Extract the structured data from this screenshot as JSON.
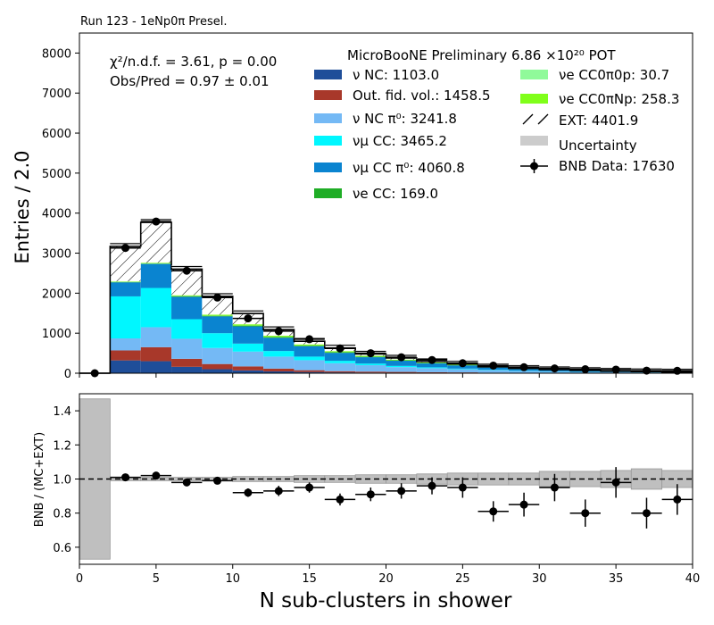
{
  "figure": {
    "run_label": "Run 123 - 1eNp0π Presel.",
    "chi2": "χ²/n.d.f. = 3.61, p = 0.00",
    "obs_pred": "Obs/Pred = 0.97 ± 0.01",
    "legend_title": "MicroBooNE Preliminary 6.86 ×10²⁰ POT"
  },
  "chart_data": [
    {
      "type": "bar",
      "stacked": true,
      "xlabel": "N sub-clusters in shower",
      "ylabel": "Entries / 2.0",
      "xlim": [
        0,
        40
      ],
      "ylim": [
        0,
        8500
      ],
      "x_ticks": [
        0,
        5,
        10,
        15,
        20,
        25,
        30,
        35,
        40
      ],
      "y_ticks": [
        0,
        1000,
        2000,
        3000,
        4000,
        5000,
        6000,
        7000,
        8000
      ],
      "bin_edges": [
        0,
        2,
        4,
        6,
        8,
        10,
        12,
        14,
        16,
        18,
        20,
        22,
        24,
        26,
        28,
        30,
        32,
        34,
        36,
        38,
        40
      ],
      "legend_position": "top-right",
      "series": [
        {
          "name": "ν NC: 1103.0",
          "color": "#1f4e99",
          "values": [
            0,
            320,
            300,
            160,
            100,
            70,
            45,
            30,
            20,
            15,
            12,
            10,
            8,
            5,
            3,
            2,
            1,
            1,
            0,
            0
          ]
        },
        {
          "name": "Out. fid. vol.: 1458.5",
          "color": "#a8382a",
          "values": [
            0,
            250,
            350,
            200,
            130,
            100,
            70,
            45,
            30,
            25,
            20,
            15,
            12,
            8,
            5,
            4,
            3,
            2,
            1,
            1
          ]
        },
        {
          "name": "ν NC π⁰: 3241.8",
          "color": "#74b9f5",
          "values": [
            0,
            300,
            500,
            500,
            400,
            370,
            300,
            250,
            200,
            160,
            120,
            100,
            80,
            60,
            45,
            35,
            25,
            20,
            15,
            10
          ]
        },
        {
          "name": "νμ CC: 3465.2",
          "color": "#00f7ff",
          "values": [
            0,
            1050,
            980,
            490,
            370,
            200,
            140,
            90,
            60,
            40,
            30,
            22,
            15,
            10,
            8,
            6,
            4,
            3,
            2,
            1
          ]
        },
        {
          "name": "νμ CC π⁰: 4060.8",
          "color": "#0a84d0",
          "values": [
            0,
            350,
            600,
            560,
            420,
            430,
            330,
            260,
            200,
            160,
            130,
            100,
            80,
            60,
            45,
            35,
            25,
            20,
            15,
            10
          ]
        },
        {
          "name": "νe CC: 169.0",
          "color": "#1fad26",
          "values": [
            0,
            10,
            10,
            15,
            15,
            20,
            18,
            15,
            15,
            12,
            10,
            8,
            6,
            4,
            3,
            3,
            2,
            2,
            1,
            0
          ]
        },
        {
          "name": "νe CC0π0p: 30.7",
          "color": "#90fa9a",
          "values": [
            0,
            5,
            4,
            3,
            3,
            3,
            3,
            2,
            2,
            2,
            1,
            1,
            1,
            0,
            0,
            0,
            0,
            0,
            0,
            0
          ]
        },
        {
          "name": "νe CC0πNp: 258.3",
          "color": "#80ff1a",
          "values": [
            0,
            10,
            15,
            20,
            25,
            30,
            30,
            28,
            25,
            20,
            18,
            12,
            10,
            6,
            4,
            2,
            1,
            1,
            0,
            0
          ]
        },
        {
          "name": "EXT: 4401.9",
          "color": "#ffffff",
          "hatch": true,
          "values": [
            0,
            875,
            1010,
            652,
            457,
            267,
            154,
            80,
            78,
            46,
            39,
            22,
            18,
            7,
            7,
            3,
            9,
            1,
            6,
            8
          ]
        }
      ],
      "uncertainty_label": "Uncertainty",
      "data_series": {
        "name": "BNB Data: 17630",
        "x": [
          1,
          3,
          5,
          7,
          9,
          11,
          13,
          15,
          17,
          19,
          21,
          23,
          25,
          27,
          29,
          31,
          33,
          35,
          37,
          39
        ],
        "y": [
          0,
          3130,
          3790,
          2560,
          1890,
          1370,
          1050,
          850,
          620,
          500,
          400,
          330,
          250,
          190,
          150,
          120,
          100,
          90,
          65,
          60
        ]
      }
    },
    {
      "type": "scatter",
      "xlabel": "N sub-clusters in shower",
      "ylabel": "BNB / (MC+EXT)",
      "xlim": [
        0,
        40
      ],
      "ylim": [
        0.5,
        1.5
      ],
      "x_ticks": [
        0,
        5,
        10,
        15,
        20,
        25,
        30,
        35,
        40
      ],
      "y_ticks": [
        0.6,
        0.8,
        1.0,
        1.2,
        1.4
      ],
      "reference_line": 1.0,
      "uncertainty_band": [
        0.47,
        0.01,
        0.01,
        0.01,
        0.01,
        0.015,
        0.015,
        0.02,
        0.02,
        0.025,
        0.025,
        0.03,
        0.035,
        0.035,
        0.035,
        0.045,
        0.045,
        0.05,
        0.06,
        0.05
      ],
      "points": [
        {
          "x": 3,
          "y": 1.01,
          "err": 0.015
        },
        {
          "x": 5,
          "y": 1.02,
          "err": 0.015
        },
        {
          "x": 7,
          "y": 0.98,
          "err": 0.02
        },
        {
          "x": 9,
          "y": 0.99,
          "err": 0.02
        },
        {
          "x": 11,
          "y": 0.92,
          "err": 0.025
        },
        {
          "x": 13,
          "y": 0.93,
          "err": 0.03
        },
        {
          "x": 15,
          "y": 0.95,
          "err": 0.03
        },
        {
          "x": 17,
          "y": 0.88,
          "err": 0.035
        },
        {
          "x": 19,
          "y": 0.91,
          "err": 0.04
        },
        {
          "x": 21,
          "y": 0.93,
          "err": 0.045
        },
        {
          "x": 23,
          "y": 0.96,
          "err": 0.05
        },
        {
          "x": 25,
          "y": 0.95,
          "err": 0.06
        },
        {
          "x": 27,
          "y": 0.81,
          "err": 0.06
        },
        {
          "x": 29,
          "y": 0.85,
          "err": 0.07
        },
        {
          "x": 31,
          "y": 0.95,
          "err": 0.08
        },
        {
          "x": 33,
          "y": 0.8,
          "err": 0.08
        },
        {
          "x": 35,
          "y": 0.98,
          "err": 0.09
        },
        {
          "x": 37,
          "y": 0.8,
          "err": 0.09
        },
        {
          "x": 39,
          "y": 0.88,
          "err": 0.09
        }
      ]
    }
  ]
}
